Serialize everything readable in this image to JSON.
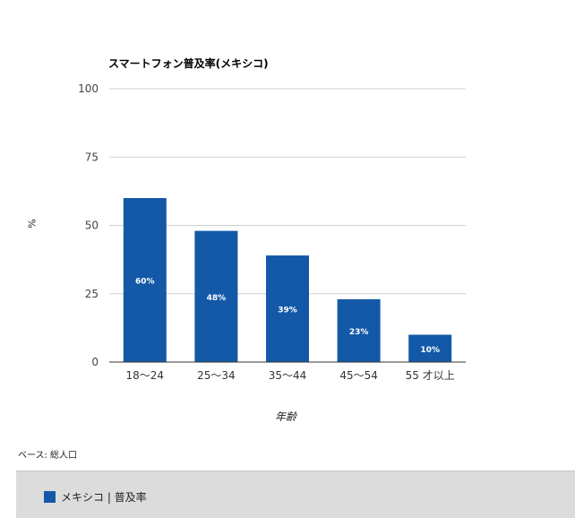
{
  "chart_data": {
    "type": "bar",
    "title": "スマートフォン普及率(メキシコ)",
    "xlabel": "年齢",
    "ylabel": "%",
    "ylim": [
      0,
      100
    ],
    "yticks": [
      0,
      25,
      50,
      75,
      100
    ],
    "categories": [
      "18～24",
      "25～34",
      "35～44",
      "45～54",
      "55 才以上"
    ],
    "series": [
      {
        "name": "メキシコ | 普及率",
        "values": [
          60,
          48,
          39,
          23,
          10
        ],
        "data_labels": [
          "60%",
          "48%",
          "39%",
          "23%",
          "10%"
        ],
        "color": "#1359a8"
      }
    ],
    "grid": true,
    "legend_position": "bottom-left"
  },
  "footnote": "ベース: 総人口",
  "colors": {
    "bar": "#1359a8",
    "gridline": "#d0d0d0",
    "axis": "#333333",
    "legend_bg": "#dcdcdc",
    "data_label": "#ffffff"
  }
}
